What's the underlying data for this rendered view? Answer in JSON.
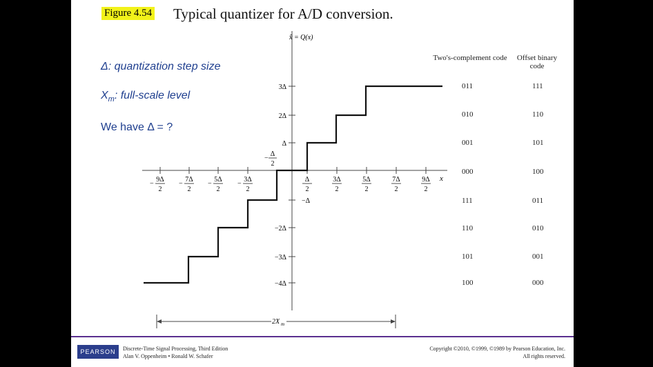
{
  "figure": {
    "label": "Figure 4.54",
    "title": "Typical quantizer for A/D conversion."
  },
  "notes": {
    "step": "Δ: quantization step size",
    "fullscale_sym": "X",
    "fullscale_sub": "m",
    "fullscale_text": ":  full-scale level",
    "question": "We have Δ = ?"
  },
  "axis": {
    "y_label": "x̂ = Q(x)",
    "x_label": "x",
    "span_label": "2X",
    "span_sub": "m"
  },
  "x_ticks": [
    {
      "num": "9Δ",
      "den": "2",
      "neg": true
    },
    {
      "num": "7Δ",
      "den": "2",
      "neg": true
    },
    {
      "num": "5Δ",
      "den": "2",
      "neg": true
    },
    {
      "num": "3Δ",
      "den": "2",
      "neg": true
    },
    {
      "num": "Δ",
      "den": "2",
      "neg": false
    },
    {
      "num": "3Δ",
      "den": "2",
      "neg": false
    },
    {
      "num": "5Δ",
      "den": "2",
      "neg": false
    },
    {
      "num": "7Δ",
      "den": "2",
      "neg": false
    },
    {
      "num": "9Δ",
      "den": "2",
      "neg": false
    }
  ],
  "neg_half_label": {
    "num": "Δ",
    "den": "2"
  },
  "y_ticks": [
    "3Δ",
    "2Δ",
    "Δ",
    "−Δ",
    "−2Δ",
    "−3Δ",
    "−4Δ"
  ],
  "code_table": {
    "headers": [
      "Two's-complement code",
      "Offset binary code"
    ],
    "rows": [
      [
        "011",
        "111"
      ],
      [
        "010",
        "110"
      ],
      [
        "001",
        "101"
      ],
      [
        "000",
        "100"
      ],
      [
        "111",
        "011"
      ],
      [
        "110",
        "010"
      ],
      [
        "101",
        "001"
      ],
      [
        "100",
        "000"
      ]
    ]
  },
  "footer": {
    "logo": "PEARSON",
    "book_line1": "Discrete-Time Signal Processing, Third Edition",
    "book_line2": "Alan V. Oppenheim • Ronald W. Schafer",
    "copy_line1": "Copyright ©2010, ©1999, ©1989 by Pearson Education, Inc.",
    "copy_line2": "All rights reserved."
  },
  "colors": {
    "highlight": "#f2f21a",
    "note_blue": "#1f3f8f",
    "footer_rule": "#5a2f8f",
    "logo_bg": "#2b3e8c"
  }
}
